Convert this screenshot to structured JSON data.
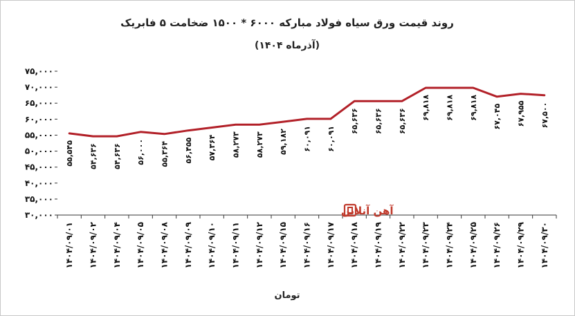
{
  "chart_data": {
    "type": "line",
    "title": "روند قیمت  ورق سیاه فولاد مبارکه ۶۰۰۰ * ۱۵۰۰ ضخامت ۵ فابریک",
    "subtitle": "(آذرماه ۱۴۰۴)",
    "xlabel": "تومان",
    "ylabel": "",
    "ylim": [
      30000,
      75000
    ],
    "yticks": [
      30000,
      35000,
      40000,
      45000,
      50000,
      55000,
      60000,
      65000,
      70000,
      75000
    ],
    "ytick_labels": [
      "۳۰,۰۰۰",
      "۳۵,۰۰۰",
      "۴۰,۰۰۰",
      "۴۵,۰۰۰",
      "۵۰,۰۰۰",
      "۵۵,۰۰۰",
      "۶۰,۰۰۰",
      "۶۵,۰۰۰",
      "۷۰,۰۰۰",
      "۷۵,۰۰۰"
    ],
    "grid": false,
    "line_color": "#b22028",
    "categories": [
      "۱۴۰۴/۰۹/۰۱",
      "۱۴۰۴/۰۹/۰۲",
      "۱۴۰۴/۰۹/۰۴",
      "۱۴۰۴/۰۹/۰۵",
      "۱۴۰۴/۰۹/۰۸",
      "۱۴۰۴/۰۹/۰۹",
      "۱۴۰۴/۰۹/۱۰",
      "۱۴۰۴/۰۹/۱۱",
      "۱۴۰۴/۰۹/۱۲",
      "۱۴۰۴/۰۹/۱۵",
      "۱۴۰۴/۰۹/۱۶",
      "۱۴۰۴/۰۹/۱۷",
      "۱۴۰۴/۰۹/۱۸",
      "۱۴۰۴/۰۹/۱۹",
      "۱۴۰۴/۰۹/۲۲",
      "۱۴۰۴/۰۹/۲۳",
      "۱۴۰۴/۰۹/۲۴",
      "۱۴۰۴/۰۹/۲۵",
      "۱۴۰۴/۰۹/۲۶",
      "۱۴۰۴/۰۹/۲۹",
      "۱۴۰۴/۰۹/۳۰"
    ],
    "values": [
      55545,
      54636,
      54636,
      56000,
      55364,
      56455,
      57364,
      58273,
      58273,
      59182,
      60091,
      60091,
      65636,
      65636,
      65636,
      69818,
      69818,
      69818,
      67045,
      67955,
      67500
    ],
    "value_labels": [
      "۵۵,۵۴۵",
      "۵۴,۶۳۶",
      "۵۴,۶۳۶",
      "۵۶,۰۰۰",
      "۵۵,۳۶۴",
      "۵۶,۴۵۵",
      "۵۷,۳۶۴",
      "۵۸,۲۷۳",
      "۵۸,۲۷۳",
      "۵۹,۱۸۲",
      "۶۰,۰۹۱",
      "۶۰,۰۹۱",
      "۶۵,۶۳۶",
      "۶۵,۶۳۶",
      "۶۵,۶۳۶",
      "۶۹,۸۱۸",
      "۶۹,۸۱۸",
      "۶۹,۸۱۸",
      "۶۷,۰۴۵",
      "۶۷,۹۵۵",
      "۶۷,۵۰۰"
    ]
  },
  "watermark": {
    "text": "آهن آنلاین",
    "color": "#c0392b",
    "icon": "ahanonline-logo-icon"
  }
}
